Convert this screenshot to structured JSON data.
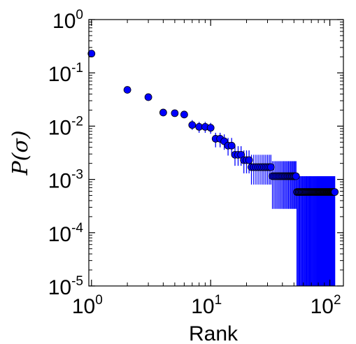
{
  "chart_data": {
    "type": "scatter",
    "x_scale": "log",
    "y_scale": "log",
    "xlim": [
      0.95,
      130
    ],
    "ylim": [
      1e-05,
      1
    ],
    "grid": false,
    "xlabel": "Rank",
    "ylabel": "P(σ)",
    "x_ticks": [
      {
        "value": 1,
        "base": "10",
        "exp": "0"
      },
      {
        "value": 10,
        "base": "10",
        "exp": "1"
      },
      {
        "value": 100,
        "base": "10",
        "exp": "2"
      }
    ],
    "y_ticks": [
      {
        "value": 1,
        "base": "10",
        "exp": "0"
      },
      {
        "value": 0.1,
        "base": "10",
        "exp": "-1"
      },
      {
        "value": 0.01,
        "base": "10",
        "exp": "-2"
      },
      {
        "value": 0.001,
        "base": "10",
        "exp": "-3"
      },
      {
        "value": 0.0001,
        "base": "10",
        "exp": "-4"
      },
      {
        "value": 1e-05,
        "base": "10",
        "exp": "-5"
      }
    ],
    "series": [
      {
        "marker_color": "#0000ff",
        "marker_edge": "#000000",
        "errorbar_color": "#0000ff",
        "groups": [
          {
            "x_from": 1,
            "x_to": 1,
            "y": 0.23,
            "y_low": 0.23,
            "y_high": 0.23
          },
          {
            "x_from": 2,
            "x_to": 2,
            "y": 0.048,
            "y_low": 0.048,
            "y_high": 0.048
          },
          {
            "x_from": 3,
            "x_to": 3,
            "y": 0.035,
            "y_low": 0.035,
            "y_high": 0.035
          },
          {
            "x_from": 4,
            "x_to": 4,
            "y": 0.018,
            "y_low": 0.018,
            "y_high": 0.018
          },
          {
            "x_from": 5,
            "x_to": 5,
            "y": 0.0175,
            "y_low": 0.0175,
            "y_high": 0.0175
          },
          {
            "x_from": 6,
            "x_to": 6,
            "y": 0.0165,
            "y_low": 0.0165,
            "y_high": 0.0165
          },
          {
            "x_from": 7,
            "x_to": 7,
            "y": 0.0105,
            "y_low": 0.0085,
            "y_high": 0.013
          },
          {
            "x_from": 8,
            "x_to": 9,
            "y": 0.0097,
            "y_low": 0.0075,
            "y_high": 0.012
          },
          {
            "x_from": 10,
            "x_to": 10,
            "y": 0.0093,
            "y_low": 0.0072,
            "y_high": 0.0115
          },
          {
            "x_from": 11,
            "x_to": 12,
            "y": 0.0058,
            "y_low": 0.004,
            "y_high": 0.0075
          },
          {
            "x_from": 13,
            "x_to": 13,
            "y": 0.0052,
            "y_low": 0.0036,
            "y_high": 0.007
          },
          {
            "x_from": 14,
            "x_to": 15,
            "y": 0.0043,
            "y_low": 0.0028,
            "y_high": 0.006
          },
          {
            "x_from": 16,
            "x_to": 18,
            "y": 0.0029,
            "y_low": 0.0018,
            "y_high": 0.0042
          },
          {
            "x_from": 19,
            "x_to": 21,
            "y": 0.0023,
            "y_low": 0.0013,
            "y_high": 0.0035
          },
          {
            "x_from": 22,
            "x_to": 32,
            "y": 0.0017,
            "y_low": 0.0008,
            "y_high": 0.0029
          },
          {
            "x_from": 33,
            "x_to": 52,
            "y": 0.00115,
            "y_low": 0.00028,
            "y_high": 0.0022
          },
          {
            "x_from": 53,
            "x_to": 110,
            "y": 0.00058,
            "y_low": 1e-05,
            "y_high": 0.00115
          }
        ]
      }
    ]
  }
}
